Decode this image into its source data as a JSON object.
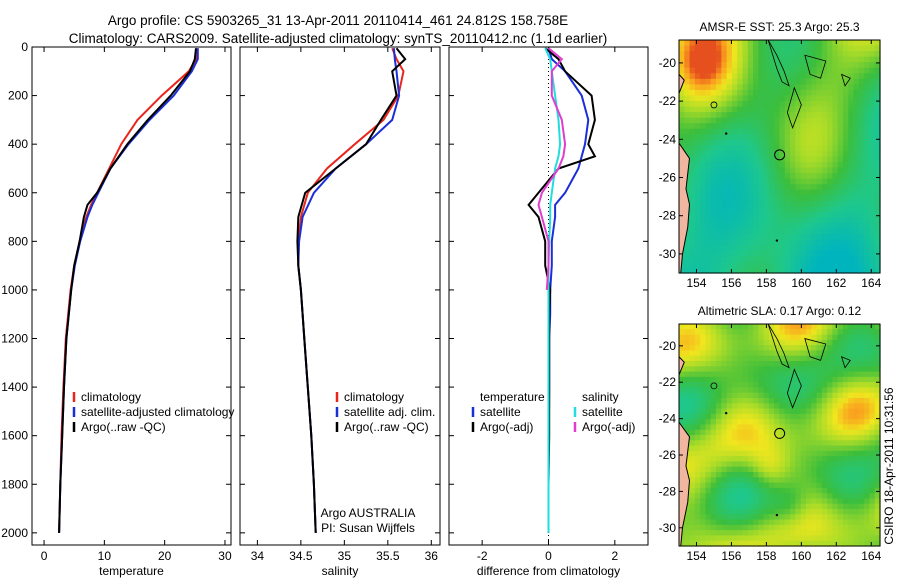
{
  "title": {
    "line1": "Argo profile: CS 5903265_31 13-Apr-2011 20110414_461 24.812S 158.758E",
    "line2": "Climatology: CARS2009. Satellite-adjusted climatology: synTS_20110412.nc (1.1d earlier)"
  },
  "side_label": "CSIRO 18-Apr-2011 10:31:56",
  "colors": {
    "climatology": "#e8261e",
    "satellite": "#1b2fd6",
    "argo": "#000000",
    "sat_salinity": "#22dddd",
    "argo_salinity": "#e03ccf"
  },
  "chart_data": [
    {
      "type": "line",
      "id": "temperature",
      "xlabel": "temperature",
      "ylabel": "",
      "xlim": [
        -2,
        31
      ],
      "ylim": [
        2050,
        0
      ],
      "xticks": [
        0,
        10,
        20,
        30
      ],
      "yticks": [
        0,
        200,
        400,
        600,
        800,
        1000,
        1200,
        1400,
        1600,
        1800,
        2000
      ],
      "legend": {
        "location": "lower-right",
        "labels": [
          "climatology",
          "satellite-adjusted climatology",
          "Argo(..raw -QC)"
        ]
      },
      "depth": [
        5,
        50,
        100,
        200,
        300,
        400,
        500,
        600,
        650,
        700,
        800,
        900,
        1000,
        1200,
        1400,
        1600,
        1800,
        2000
      ],
      "series": [
        {
          "name": "climatology",
          "color_key": "climatology",
          "values": [
            25.5,
            25.2,
            24.0,
            19.5,
            15.5,
            12.8,
            10.8,
            8.8,
            7.8,
            7.0,
            5.9,
            5.0,
            4.4,
            3.6,
            3.2,
            2.9,
            2.7,
            2.5
          ]
        },
        {
          "name": "satellite-adjusted climatology",
          "color_key": "satellite",
          "values": [
            25.5,
            25.5,
            24.5,
            21.5,
            17.5,
            14.0,
            11.0,
            9.0,
            8.0,
            7.2,
            6.0,
            5.1,
            4.5,
            3.7,
            3.3,
            3.0,
            2.7,
            2.5
          ]
        },
        {
          "name": "Argo(..raw -QC)",
          "color_key": "argo",
          "values": [
            25.2,
            25.0,
            24.2,
            21.0,
            17.2,
            13.8,
            11.0,
            8.8,
            7.2,
            6.6,
            5.9,
            5.0,
            4.5,
            3.7,
            3.3,
            3.0,
            2.7,
            2.5
          ]
        }
      ]
    },
    {
      "type": "line",
      "id": "salinity",
      "xlabel": "salinity",
      "ylabel": "",
      "xlim": [
        33.8,
        36.1
      ],
      "ylim": [
        2050,
        0
      ],
      "xticks": [
        34,
        34.5,
        35,
        35.5,
        36
      ],
      "legend": {
        "location": "lower-right",
        "labels": [
          "climatology",
          "satellite adj. clim.",
          "Argo(..raw -QC)"
        ]
      },
      "annotation": {
        "line1": "Argo AUSTRALIA",
        "line2": "PI: Susan Wijffels"
      },
      "depth": [
        5,
        50,
        100,
        200,
        300,
        400,
        500,
        600,
        700,
        800,
        900,
        1000,
        1200,
        1400,
        1600,
        1800,
        2000
      ],
      "series": [
        {
          "name": "climatology",
          "color_key": "climatology",
          "values": [
            35.55,
            35.6,
            35.68,
            35.62,
            35.45,
            35.12,
            34.8,
            34.58,
            34.5,
            34.47,
            34.47,
            34.5,
            34.54,
            34.58,
            34.62,
            34.65,
            34.67
          ]
        },
        {
          "name": "satellite adj. clim.",
          "color_key": "satellite",
          "values": [
            35.57,
            35.58,
            35.6,
            35.63,
            35.55,
            35.25,
            34.9,
            34.65,
            34.52,
            34.48,
            34.47,
            34.5,
            34.54,
            34.58,
            34.62,
            34.65,
            34.67
          ]
        },
        {
          "name": "Argo(..raw -QC)",
          "color_key": "argo",
          "values": [
            35.6,
            35.7,
            35.55,
            35.6,
            35.42,
            35.25,
            34.9,
            34.55,
            34.47,
            34.46,
            34.47,
            34.5,
            34.54,
            34.58,
            34.62,
            34.65,
            34.67
          ]
        }
      ]
    },
    {
      "type": "line",
      "id": "difference",
      "xlabel": "difference from climatology",
      "ylabel": "",
      "xlim": [
        -3,
        3
      ],
      "ylim": [
        2050,
        0
      ],
      "xticks": [
        -2,
        0,
        2
      ],
      "legend": {
        "location": "lower-center",
        "temperature_header": "temperature",
        "salinity_header": "salinity",
        "labels": [
          "satellite",
          "Argo(-adj)",
          "satellite",
          "Argo(-adj)"
        ]
      },
      "depth": [
        5,
        50,
        100,
        200,
        300,
        400,
        450,
        500,
        600,
        650,
        700,
        800,
        900,
        1000,
        1100,
        1200,
        1400,
        1600,
        1800,
        2000
      ],
      "series": [
        {
          "name": "satellite",
          "group": "temperature",
          "color_key": "satellite",
          "values": [
            0.0,
            0.1,
            0.5,
            1.0,
            1.2,
            1.1,
            1.0,
            0.9,
            0.5,
            0.2,
            0.2,
            0.1,
            0.1,
            0.05,
            0.05,
            0.02,
            0.02,
            0.01,
            0.0,
            0.0
          ]
        },
        {
          "name": "Argo(-adj)",
          "group": "temperature",
          "color_key": "argo",
          "values": [
            -0.1,
            0.3,
            0.5,
            1.3,
            1.4,
            1.2,
            1.4,
            0.3,
            -0.3,
            -0.6,
            -0.3,
            -0.1,
            -0.1,
            0.05,
            0.02,
            0.02,
            0.02,
            0.02,
            0.0,
            0.0
          ]
        },
        {
          "name": "satellite",
          "group": "salinity",
          "color_key": "sat_salinity",
          "values": [
            -0.1,
            0.05,
            0.1,
            0.2,
            0.3,
            0.35,
            0.3,
            0.2,
            0.1,
            0.05,
            0.05,
            0.02,
            0.0,
            0.0,
            0.0,
            0.0,
            0.0,
            0.0,
            0.0,
            0.0
          ]
        },
        {
          "name": "Argo(-adj)",
          "group": "salinity",
          "color_key": "argo_salinity",
          "values": [
            0.0,
            0.4,
            0.1,
            0.1,
            0.4,
            0.5,
            0.45,
            0.3,
            -0.2,
            -0.3,
            -0.2,
            0.0,
            0.0,
            -0.05,
            null,
            null,
            null,
            null,
            null,
            null
          ]
        }
      ]
    },
    {
      "type": "heatmap",
      "id": "sst_map",
      "title": "AMSR-E SST: 25.3 Argo: 25.3",
      "xlim": [
        153,
        164.5
      ],
      "ylim": [
        -31,
        -18.8
      ],
      "xticks": [
        154,
        156,
        158,
        160,
        162,
        164
      ],
      "yticks": [
        -20,
        -22,
        -24,
        -26,
        -28,
        -30
      ],
      "marker": {
        "lon": 158.758,
        "lat": -24.812
      }
    },
    {
      "type": "heatmap",
      "id": "sla_map",
      "title": "Altimetric SLA: 0.17 Argo: 0.12",
      "xlim": [
        153,
        164.5
      ],
      "ylim": [
        -31,
        -18.8
      ],
      "xticks": [
        154,
        156,
        158,
        160,
        162,
        164
      ],
      "yticks": [
        -20,
        -22,
        -24,
        -26,
        -28,
        -30
      ],
      "marker": {
        "lon": 158.758,
        "lat": -24.812
      }
    }
  ]
}
